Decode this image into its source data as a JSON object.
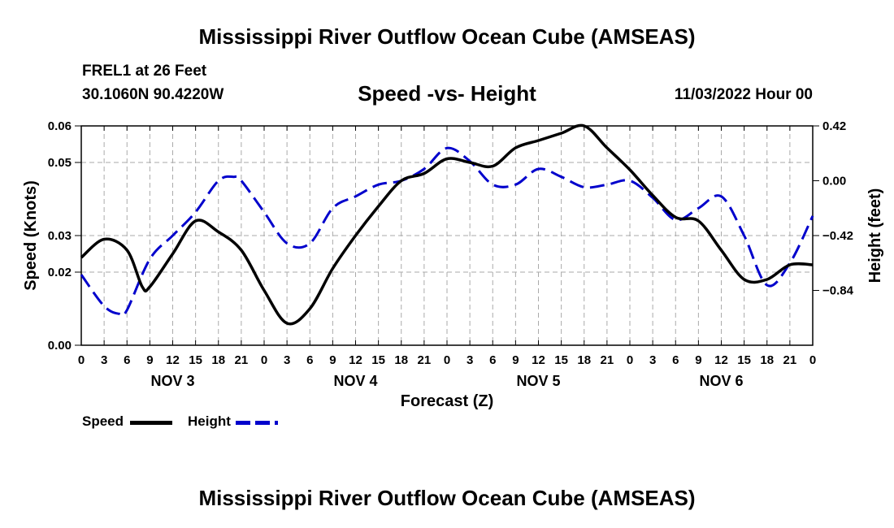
{
  "header": {
    "title": "Mississippi River Outflow Ocean Cube (AMSEAS)",
    "station": "FREL1 at 26 Feet",
    "coords": "30.1060N  90.4220W",
    "subtitle": "Speed -vs- Height",
    "datetime": "11/03/2022 Hour 00"
  },
  "footer": {
    "title": "Mississippi River Outflow Ocean Cube (AMSEAS)"
  },
  "legend": {
    "speed_label": "Speed",
    "height_label": "Height",
    "speed_color": "#000000",
    "height_color": "#0000cc"
  },
  "chart_data": {
    "type": "line",
    "title": "Speed -vs- Height",
    "xlabel": "Forecast (Z)",
    "ylabel": "Speed (Knots)",
    "y2label": "Height (feet)",
    "xlim": [
      0,
      96
    ],
    "ylim": [
      0,
      0.06
    ],
    "y2lim": [
      -1.26,
      0.42
    ],
    "x_tick_labels": [
      "0",
      "3",
      "6",
      "9",
      "12",
      "15",
      "18",
      "21",
      "0",
      "3",
      "6",
      "9",
      "12",
      "15",
      "18",
      "21",
      "0",
      "3",
      "6",
      "9",
      "12",
      "15",
      "18",
      "21",
      "0",
      "3",
      "6",
      "9",
      "12",
      "15",
      "18",
      "21",
      "0"
    ],
    "y_ticks": [
      0.0,
      0.02,
      0.03,
      0.05,
      0.06
    ],
    "y_tick_labels": [
      "0.00",
      "0.02",
      "0.03",
      "0.05",
      "0.06"
    ],
    "y2_ticks": [
      0.42,
      0.0,
      -0.42,
      -0.84
    ],
    "y2_tick_labels": [
      "0.42",
      "0.00",
      "−0.42",
      "−0.84"
    ],
    "day_labels": [
      {
        "label": "NOV 3",
        "x": 12
      },
      {
        "label": "NOV 4",
        "x": 36
      },
      {
        "label": "NOV 5",
        "x": 60
      },
      {
        "label": "NOV 6",
        "x": 84
      }
    ],
    "grid": true,
    "series": [
      {
        "name": "Speed",
        "axis": "left",
        "style": "solid",
        "x": [
          0,
          3,
          6,
          8,
          9,
          12,
          15,
          18,
          21,
          24,
          27,
          30,
          33,
          36,
          39,
          42,
          45,
          48,
          51,
          54,
          57,
          60,
          63,
          66,
          69,
          72,
          75,
          78,
          81,
          84,
          87,
          90,
          93,
          96
        ],
        "values": [
          0.024,
          0.029,
          0.026,
          0.016,
          0.016,
          0.025,
          0.034,
          0.031,
          0.026,
          0.015,
          0.006,
          0.01,
          0.021,
          0.03,
          0.038,
          0.045,
          0.047,
          0.051,
          0.05,
          0.049,
          0.054,
          0.056,
          0.058,
          0.06,
          0.054,
          0.048,
          0.041,
          0.035,
          0.034,
          0.026,
          0.018,
          0.018,
          0.022,
          0.022
        ]
      },
      {
        "name": "Height",
        "axis": "right",
        "style": "dashed",
        "x": [
          0,
          3,
          5,
          6,
          9,
          12,
          15,
          18,
          20,
          21,
          24,
          27,
          30,
          33,
          36,
          39,
          42,
          45,
          48,
          51,
          54,
          57,
          60,
          63,
          66,
          69,
          72,
          75,
          78,
          81,
          84,
          87,
          90,
          93,
          96
        ],
        "values": [
          -0.72,
          -0.96,
          -1.02,
          -0.99,
          -0.6,
          -0.42,
          -0.24,
          0.0,
          0.03,
          0.0,
          -0.24,
          -0.48,
          -0.48,
          -0.21,
          -0.12,
          -0.03,
          0.0,
          0.09,
          0.25,
          0.15,
          -0.03,
          -0.03,
          0.09,
          0.03,
          -0.05,
          -0.03,
          0.0,
          -0.13,
          -0.3,
          -0.21,
          -0.12,
          -0.42,
          -0.8,
          -0.63,
          -0.27
        ]
      }
    ]
  }
}
